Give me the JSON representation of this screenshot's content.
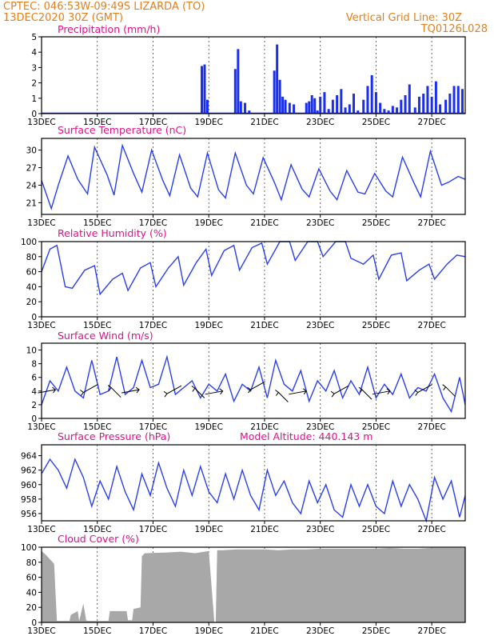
{
  "header": {
    "left_line1": "CPTEC:   046:53W-09:49S   LIZARDA (TO)",
    "left_line2": "13DEC2020  30Z (GMT)",
    "right_line1": "Vertical Grid Line: 30Z",
    "right_line2": "TQ0126L028"
  },
  "colors": {
    "series": "#2a3ff0",
    "bars": "#1a2ff0",
    "cloud": "#a8a8a8",
    "titles": "#e0108a",
    "header": "#e08020"
  },
  "x_axis": {
    "range_days": [
      0,
      15.2
    ],
    "ticks": [
      0,
      2,
      4,
      6,
      8,
      10,
      12,
      14
    ],
    "tick_labels": [
      "13DEC",
      "15DEC",
      "17DEC",
      "19DEC",
      "21DEC",
      "23DEC",
      "25DEC",
      "27DEC"
    ]
  },
  "chart_data": [
    {
      "type": "bar",
      "title": "Precipitation (mm/h)",
      "ylim": [
        0,
        5
      ],
      "yticks": [
        0,
        1,
        2,
        3,
        4,
        5
      ],
      "x": [
        5.75,
        5.85,
        5.95,
        6.95,
        7.05,
        7.15,
        7.3,
        7.45,
        8.35,
        8.45,
        8.55,
        8.65,
        8.75,
        8.9,
        9.05,
        9.5,
        9.6,
        9.7,
        9.8,
        9.9,
        10.0,
        10.15,
        10.3,
        10.45,
        10.6,
        10.75,
        10.9,
        11.05,
        11.2,
        11.35,
        11.55,
        11.7,
        11.85,
        12.0,
        12.15,
        12.3,
        12.45,
        12.6,
        12.75,
        12.9,
        13.05,
        13.2,
        13.4,
        13.55,
        13.7,
        13.85,
        14.0,
        14.15,
        14.3,
        14.5,
        14.65,
        14.8,
        14.95,
        15.1
      ],
      "values": [
        3.1,
        3.2,
        0.9,
        2.9,
        4.2,
        0.8,
        0.7,
        0.2,
        2.8,
        4.5,
        2.2,
        1.1,
        0.9,
        0.7,
        0.6,
        0.7,
        0.8,
        1.2,
        1.0,
        0.2,
        1.1,
        1.4,
        0.3,
        0.9,
        1.2,
        1.6,
        0.4,
        0.6,
        1.3,
        0.2,
        0.9,
        1.8,
        2.5,
        1.4,
        0.7,
        0.3,
        0.2,
        0.5,
        0.4,
        0.9,
        1.2,
        1.9,
        0.4,
        1.1,
        1.3,
        1.8,
        1.1,
        2.1,
        0.6,
        0.9,
        1.3,
        1.8,
        1.8,
        1.6
      ]
    },
    {
      "type": "line",
      "title": "Surface Temperature (nC)",
      "ylim": [
        19,
        32
      ],
      "yticks": [
        21,
        24,
        27,
        30
      ],
      "x": [
        0,
        0.35,
        0.6,
        0.95,
        1.3,
        1.65,
        1.9,
        2.35,
        2.6,
        2.9,
        3.3,
        3.6,
        3.95,
        4.35,
        4.6,
        4.95,
        5.35,
        5.6,
        5.95,
        6.35,
        6.6,
        6.95,
        7.35,
        7.6,
        7.95,
        8.35,
        8.6,
        8.95,
        9.35,
        9.6,
        9.95,
        10.35,
        10.6,
        10.95,
        11.35,
        11.6,
        11.95,
        12.35,
        12.6,
        12.95,
        13.35,
        13.6,
        13.95,
        14.35,
        14.6,
        14.95,
        15.2
      ],
      "y": [
        24.8,
        20.0,
        24.0,
        29.0,
        25.0,
        22.5,
        30.5,
        25.8,
        22.3,
        30.8,
        26.0,
        22.8,
        30.0,
        24.8,
        22.2,
        29.2,
        23.5,
        22.0,
        29.5,
        23.2,
        21.8,
        29.5,
        24.0,
        22.5,
        28.7,
        24.5,
        21.5,
        27.5,
        23.3,
        22.0,
        26.8,
        23.0,
        21.5,
        26.5,
        22.8,
        22.5,
        26.0,
        23.0,
        22.0,
        28.8,
        24.5,
        22.0,
        29.8,
        24.0,
        24.5,
        25.5,
        25.0
      ]
    },
    {
      "type": "line",
      "title": "Relative Humidity (%)",
      "ylim": [
        0,
        100
      ],
      "yticks": [
        0,
        20,
        40,
        60,
        80,
        100
      ],
      "x": [
        0,
        0.3,
        0.55,
        0.85,
        1.1,
        1.55,
        1.9,
        2.1,
        2.55,
        2.9,
        3.1,
        3.55,
        3.9,
        4.1,
        4.55,
        4.9,
        5.1,
        5.55,
        5.9,
        6.1,
        6.55,
        6.9,
        7.1,
        7.55,
        7.9,
        8.1,
        8.55,
        8.9,
        9.1,
        9.55,
        9.9,
        10.1,
        10.55,
        10.9,
        11.1,
        11.55,
        11.9,
        12.1,
        12.55,
        12.9,
        13.1,
        13.55,
        13.9,
        14.1,
        14.55,
        14.9,
        15.2
      ],
      "y": [
        60,
        90,
        95,
        40,
        38,
        62,
        68,
        30,
        50,
        58,
        35,
        65,
        72,
        40,
        65,
        80,
        42,
        72,
        90,
        55,
        88,
        95,
        62,
        92,
        98,
        70,
        100,
        100,
        75,
        100,
        100,
        80,
        100,
        100,
        78,
        70,
        82,
        50,
        82,
        85,
        48,
        62,
        70,
        50,
        70,
        82,
        80
      ]
    },
    {
      "type": "line",
      "title": "Surface Wind (m/s)",
      "ylim": [
        0,
        11
      ],
      "yticks": [
        0,
        2,
        4,
        6,
        8,
        10
      ],
      "x": [
        0,
        0.3,
        0.6,
        0.9,
        1.2,
        1.5,
        1.8,
        2.1,
        2.4,
        2.7,
        3.0,
        3.3,
        3.6,
        3.9,
        4.2,
        4.5,
        4.8,
        5.1,
        5.4,
        5.7,
        6.0,
        6.3,
        6.6,
        6.9,
        7.2,
        7.5,
        7.8,
        8.1,
        8.4,
        8.7,
        9.0,
        9.3,
        9.6,
        9.9,
        10.2,
        10.5,
        10.8,
        11.1,
        11.4,
        11.7,
        12.0,
        12.3,
        12.6,
        12.9,
        13.2,
        13.5,
        13.8,
        14.1,
        14.4,
        14.7,
        15.0,
        15.2
      ],
      "y": [
        2.0,
        5.5,
        4.0,
        7.5,
        4.0,
        3.0,
        8.5,
        3.5,
        4.0,
        9.0,
        3.5,
        4.5,
        8.5,
        4.5,
        5.0,
        9.0,
        3.5,
        4.5,
        5.5,
        3.0,
        5.0,
        4.0,
        6.5,
        2.5,
        5.0,
        4.0,
        7.5,
        3.0,
        8.5,
        5.0,
        4.0,
        7.0,
        2.5,
        5.5,
        4.0,
        7.0,
        3.0,
        5.5,
        3.5,
        7.5,
        3.0,
        5.0,
        3.5,
        6.5,
        3.0,
        4.5,
        4.0,
        6.5,
        3.0,
        1.0,
        6.0,
        2.0
      ],
      "arrows": {
        "x": [
          0.5,
          1.5,
          2.5,
          3.5,
          4.5,
          5.5,
          6.5,
          7.5,
          8.5,
          9.5,
          10.5,
          11.5,
          12.5,
          13.5,
          14.5
        ],
        "y": [
          4.2,
          3.8,
          4.5,
          4.2,
          3.6,
          4.4,
          4.0,
          4.2,
          3.8,
          4.0,
          3.6,
          4.2,
          4.0,
          3.8,
          4.6
        ]
      }
    },
    {
      "type": "line",
      "title": "Surface Pressure (hPa)",
      "annotation": "Model Altitude: 440.143 m",
      "ylim": [
        955,
        965.5
      ],
      "yticks": [
        956,
        958,
        960,
        962,
        964
      ],
      "x": [
        0,
        0.3,
        0.6,
        0.9,
        1.2,
        1.5,
        1.8,
        2.1,
        2.4,
        2.7,
        3.0,
        3.3,
        3.6,
        3.9,
        4.2,
        4.5,
        4.8,
        5.1,
        5.4,
        5.7,
        6.0,
        6.3,
        6.6,
        6.9,
        7.2,
        7.5,
        7.8,
        8.1,
        8.4,
        8.7,
        9.0,
        9.3,
        9.6,
        9.9,
        10.2,
        10.5,
        10.8,
        11.1,
        11.4,
        11.7,
        12.0,
        12.3,
        12.6,
        12.9,
        13.2,
        13.5,
        13.8,
        14.1,
        14.4,
        14.7,
        15.0,
        15.2
      ],
      "y": [
        961.5,
        963.5,
        962.0,
        959.5,
        963.5,
        961.0,
        957.0,
        960.5,
        958.0,
        962.5,
        959.0,
        956.5,
        961.5,
        958.5,
        963.0,
        959.5,
        957.0,
        962.0,
        958.5,
        962.5,
        959.0,
        957.5,
        961.5,
        958.0,
        962.0,
        958.5,
        956.5,
        962.0,
        958.5,
        960.5,
        957.5,
        956.0,
        960.5,
        957.5,
        960.0,
        956.5,
        955.5,
        960.0,
        957.0,
        960.0,
        957.0,
        956.0,
        960.5,
        957.0,
        960.0,
        958.0,
        955.0,
        961.0,
        958.0,
        960.5,
        955.5,
        958.5
      ]
    },
    {
      "type": "area",
      "title": "Cloud Cover (%)",
      "ylim": [
        0,
        100
      ],
      "yticks": [
        0,
        20,
        40,
        60,
        80,
        100
      ],
      "x": [
        0,
        0.15,
        0.45,
        0.55,
        1.0,
        1.05,
        1.3,
        1.35,
        1.45,
        1.5,
        1.6,
        1.65,
        2.4,
        2.45,
        3.05,
        3.1,
        3.25,
        3.3,
        3.55,
        3.6,
        3.65,
        3.7,
        3.75,
        4.5,
        5.0,
        5.5,
        6.0,
        6.2,
        6.25,
        6.3,
        6.5,
        7.0,
        7.5,
        8.0,
        8.5,
        9.0,
        9.5,
        10.0,
        10.5,
        11.0,
        11.5,
        12.0,
        12.5,
        13.0,
        13.5,
        14.0,
        14.5,
        15.0,
        15.2
      ],
      "y": [
        95,
        90,
        78,
        2,
        2,
        10,
        15,
        2,
        18,
        25,
        3,
        2,
        2,
        15,
        15,
        3,
        3,
        18,
        20,
        88,
        90,
        92,
        92,
        93,
        94,
        92,
        95,
        0,
        0,
        96,
        96,
        97,
        97,
        97,
        96,
        97,
        97,
        98,
        98,
        98,
        98,
        98,
        99,
        98,
        98,
        99,
        99,
        99,
        99
      ]
    }
  ]
}
